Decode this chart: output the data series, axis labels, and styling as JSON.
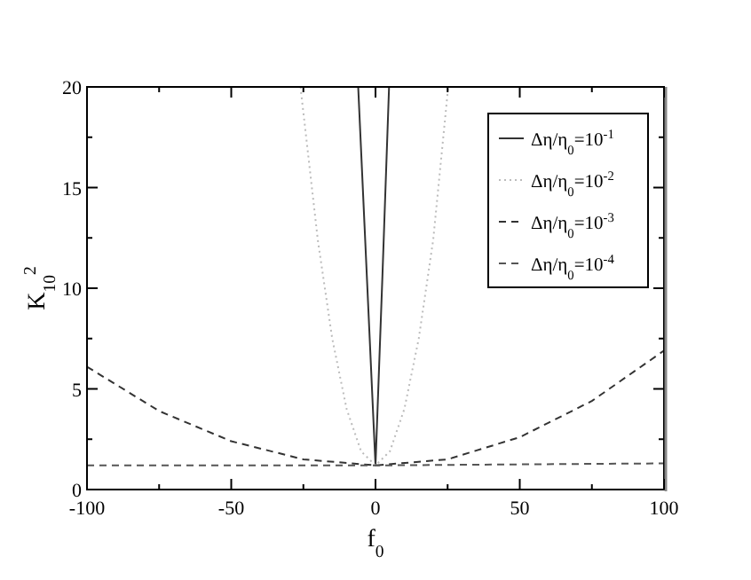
{
  "chart_data": {
    "type": "line",
    "xlabel": "f$_{0}$",
    "ylabel": "K$_{10}$$^{2}$",
    "xlim": [
      -100,
      100
    ],
    "ylim": [
      0,
      20
    ],
    "xticks": [
      -100,
      {
        "value": -75,
        "label": null
      },
      -50,
      {
        "value": -25,
        "label": null
      },
      0,
      {
        "value": 25,
        "label": null
      },
      50,
      {
        "value": 75,
        "label": null
      },
      100
    ],
    "yticks": [
      0,
      {
        "value": 2.5,
        "label": null
      },
      5,
      {
        "value": 7.5,
        "label": null
      },
      10,
      {
        "value": 12.5,
        "label": null
      },
      15,
      {
        "value": 17.5,
        "label": null
      },
      20
    ],
    "grid": false,
    "legend": "top right",
    "marker": "none",
    "series": [
      {
        "name": "Δη/η$_{0}$=10$^{-1}$",
        "color": "#333333",
        "line_style": "solid",
        "x": [
          -6,
          -3,
          0,
          2.4,
          4.7
        ],
        "values": [
          20,
          10.6,
          1.2,
          10.6,
          20
        ]
      },
      {
        "name": "Δη/η$_{0}$=10$^{-2}$",
        "color": "#bbbbbb",
        "line_style": "dotted",
        "x": [
          -26,
          -20,
          -15,
          -10,
          -5,
          0,
          5,
          10,
          15,
          20,
          25.2
        ],
        "values": [
          20,
          12.4,
          7.5,
          4.0,
          1.9,
          1.2,
          1.9,
          4.0,
          7.5,
          12.4,
          20
        ]
      },
      {
        "name": "Δη/η$_{0}$=10$^{-3}$",
        "color": "#333333",
        "line_style": "dashed",
        "x": [
          -100,
          -75,
          -50,
          -25,
          0,
          25,
          50,
          75,
          100
        ],
        "values": [
          6.1,
          3.9,
          2.4,
          1.5,
          1.2,
          1.5,
          2.6,
          4.4,
          6.9
        ]
      },
      {
        "name": "Δη/η$_{0}$=10$^{-4}$",
        "color": "#555555",
        "line_style": "dashed",
        "x": [
          -100,
          0,
          100
        ],
        "values": [
          1.2,
          1.2,
          1.3
        ]
      }
    ]
  }
}
